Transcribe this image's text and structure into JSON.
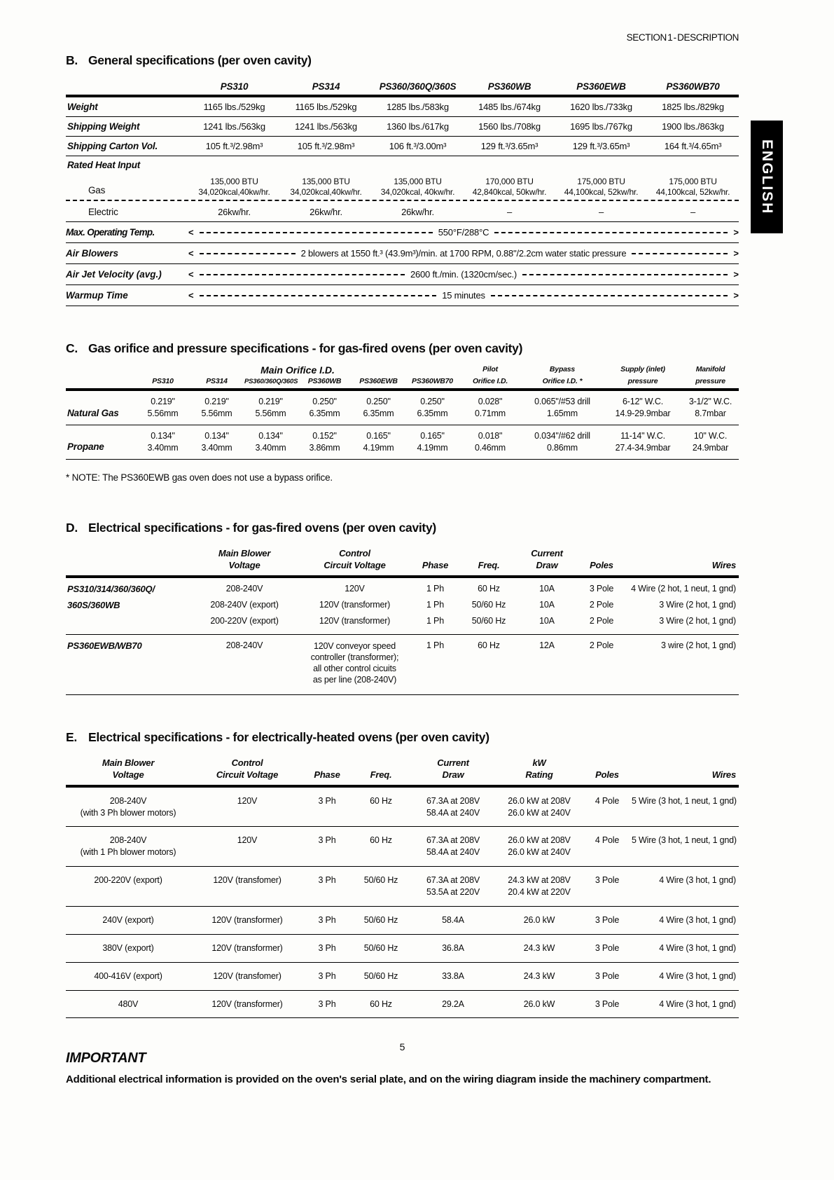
{
  "page": {
    "header": "SECTION 1 - DESCRIPTION",
    "language_tab": "ENGLISH",
    "page_number": "5"
  },
  "section_b": {
    "letter": "B.",
    "title": "General specifications (per oven cavity)",
    "columns": [
      "PS310",
      "PS314",
      "PS360/360Q/360S",
      "PS360WB",
      "PS360EWB",
      "PS360WB70"
    ],
    "rows": [
      {
        "label": "Weight",
        "values": [
          "1165 lbs./529kg",
          "1165 lbs./529kg",
          "1285 lbs./583kg",
          "1485 lbs./674kg",
          "1620 lbs./733kg",
          "1825 lbs./829kg"
        ]
      },
      {
        "label": "Shipping Weight",
        "values": [
          "1241 lbs./563kg",
          "1241 lbs./563kg",
          "1360 lbs./617kg",
          "1560 lbs./708kg",
          "1695 lbs./767kg",
          "1900 lbs./863kg"
        ]
      },
      {
        "label": "Shipping Carton Vol.",
        "values": [
          "105 ft.³/2.98m³",
          "105 ft.³/2.98m³",
          "106 ft.³/3.00m³",
          "129 ft.³/3.65m³",
          "129 ft.³/3.65m³",
          "164 ft.³/4.65m³"
        ]
      }
    ],
    "heat_input": {
      "group_label": "Rated Heat Input",
      "gas_label": "Gas",
      "gas_values": [
        [
          "135,000 BTU",
          "34,020kcal,40kw/hr."
        ],
        [
          "135,000 BTU",
          "34,020kcal,40kw/hr."
        ],
        [
          "135,000 BTU",
          "34,020kcal, 40kw/hr."
        ],
        [
          "170,000 BTU",
          "42,840kcal, 50kw/hr."
        ],
        [
          "175,000 BTU",
          "44,100kcal, 52kw/hr."
        ],
        [
          "175,000 BTU",
          "44,100kcal, 52kw/hr."
        ]
      ],
      "electric_label": "Electric",
      "electric_values": [
        "26kw/hr.",
        "26kw/hr.",
        "26kw/hr.",
        "–",
        "–",
        "–"
      ]
    },
    "span_rows": [
      {
        "label": "Max. Operating Temp.",
        "value": "550°F/288°C"
      },
      {
        "label": "Air Blowers",
        "value": "2 blowers at 1550 ft.³ (43.9m³)/min. at 1700 RPM, 0.88\"/2.2cm water static pressure"
      },
      {
        "label": "Air Jet Velocity (avg.)",
        "value": "2600 ft./min. (1320cm/sec.)"
      },
      {
        "label": "Warmup Time",
        "value": "15 minutes"
      }
    ]
  },
  "section_c": {
    "letter": "C.",
    "title": "Gas orifice and pressure specifications - for gas-fired ovens (per oven cavity)",
    "main_orifice_header": "Main Orifice I.D.",
    "columns": [
      "PS310",
      "PS314",
      "PS360/360Q/360S",
      "PS360WB",
      "PS360EWB",
      "PS360WB70"
    ],
    "extra_columns": [
      [
        "Pilot",
        "Orifice I.D."
      ],
      [
        "Bypass",
        "Orifice I.D. *"
      ],
      [
        "Supply (inlet)",
        "pressure"
      ],
      [
        "Manifold",
        "pressure"
      ]
    ],
    "rows": [
      {
        "label": "Natural Gas",
        "values": [
          [
            "0.219\"",
            "5.56mm"
          ],
          [
            "0.219\"",
            "5.56mm"
          ],
          [
            "0.219\"",
            "5.56mm"
          ],
          [
            "0.250\"",
            "6.35mm"
          ],
          [
            "0.250\"",
            "6.35mm"
          ],
          [
            "0.250\"",
            "6.35mm"
          ],
          [
            "0.028\"",
            "0.71mm"
          ],
          [
            "0.065\"/#53 drill",
            "1.65mm"
          ],
          [
            "6-12\" W.C.",
            "14.9-29.9mbar"
          ],
          [
            "3-1/2\" W.C.",
            "8.7mbar"
          ]
        ]
      },
      {
        "label": "Propane",
        "values": [
          [
            "0.134\"",
            "3.40mm"
          ],
          [
            "0.134\"",
            "3.40mm"
          ],
          [
            "0.134\"",
            "3.40mm"
          ],
          [
            "0.152\"",
            "3.86mm"
          ],
          [
            "0.165\"",
            "4.19mm"
          ],
          [
            "0.165\"",
            "4.19mm"
          ],
          [
            "0.018\"",
            "0.46mm"
          ],
          [
            "0.034\"/#62 drill",
            "0.86mm"
          ],
          [
            "11-14\" W.C.",
            "27.4-34.9mbar"
          ],
          [
            "10\" W.C.",
            "24.9mbar"
          ]
        ]
      }
    ],
    "note": "*  NOTE:  The PS360EWB gas oven does not use a bypass orifice."
  },
  "section_d": {
    "letter": "D.",
    "title": "Electrical specifications - for gas-fired ovens (per oven cavity)",
    "columns": [
      [
        "Main Blower",
        "Voltage"
      ],
      [
        "Control",
        "Circuit Voltage"
      ],
      [
        "Phase"
      ],
      [
        "Freq."
      ],
      [
        "Current",
        "Draw"
      ],
      [
        "Poles"
      ],
      [
        "Wires"
      ]
    ],
    "groups": [
      {
        "rows": [
          {
            "label": "PS310/314/360/360Q/",
            "cells": [
              "208-240V",
              "120V",
              "1 Ph",
              "60 Hz",
              "10A",
              "3 Pole",
              "4 Wire (2 hot, 1 neut, 1 gnd)"
            ]
          },
          {
            "label": "360S/360WB",
            "cells": [
              "208-240V (export)",
              "120V (transformer)",
              "1 Ph",
              "50/60 Hz",
              "10A",
              "2 Pole",
              "3 Wire (2 hot, 1 gnd)"
            ]
          },
          {
            "label": "",
            "cells": [
              "200-220V (export)",
              "120V (transformer)",
              "1 Ph",
              "50/60 Hz",
              "10A",
              "2 Pole",
              "3 Wire (2 hot, 1 gnd)"
            ]
          }
        ]
      },
      {
        "rows": [
          {
            "label": "PS360EWB/WB70",
            "cells": [
              "208-240V",
              [
                "120V conveyor speed",
                "controller (transformer);",
                "all other control cicuits",
                "as per line (208-240V)"
              ],
              "1 Ph",
              "60 Hz",
              "12A",
              "2 Pole",
              "3 wire (2 hot, 1 gnd)"
            ]
          }
        ]
      }
    ]
  },
  "section_e": {
    "letter": "E.",
    "title": "Electrical specifications - for electrically-heated ovens (per oven cavity)",
    "columns": [
      [
        "Main Blower",
        "Voltage"
      ],
      [
        "Control",
        "Circuit Voltage"
      ],
      [
        "Phase"
      ],
      [
        "Freq."
      ],
      [
        "Current",
        "Draw"
      ],
      [
        "kW",
        "Rating"
      ],
      [
        "Poles"
      ],
      [
        "Wires"
      ]
    ],
    "rows": [
      {
        "label": [
          "208-240V",
          "(with 3 Ph blower motors)"
        ],
        "cells": [
          "120V",
          "3 Ph",
          "60 Hz",
          [
            "67.3A at 208V",
            "58.4A at 240V"
          ],
          [
            "26.0 kW at 208V",
            "26.0 kW at 240V"
          ],
          "4 Pole",
          "5 Wire (3 hot, 1 neut, 1 gnd)"
        ]
      },
      {
        "label": [
          "208-240V",
          "(with 1 Ph blower motors)"
        ],
        "cells": [
          "120V",
          "3 Ph",
          "60 Hz",
          [
            "67.3A at 208V",
            "58.4A at 240V"
          ],
          [
            "26.0 kW at 208V",
            "26.0 kW at 240V"
          ],
          "4 Pole",
          "5 Wire (3 hot, 1 neut, 1 gnd)"
        ]
      },
      {
        "label": [
          "200-220V (export)"
        ],
        "cells": [
          "120V (transfomer)",
          "3 Ph",
          "50/60 Hz",
          [
            "67.3A at 208V",
            "53.5A at 220V"
          ],
          [
            "24.3 kW at 208V",
            "20.4 kW at 220V"
          ],
          "3 Pole",
          "4 Wire (3 hot, 1 gnd)"
        ]
      },
      {
        "label": [
          "240V (export)"
        ],
        "cells": [
          "120V (transformer)",
          "3 Ph",
          "50/60 Hz",
          "58.4A",
          "26.0 kW",
          "3 Pole",
          "4 Wire (3 hot, 1 gnd)"
        ]
      },
      {
        "label": [
          "380V (export)"
        ],
        "cells": [
          "120V (transformer)",
          "3 Ph",
          "50/60 Hz",
          "36.8A",
          "24.3 kW",
          "3 Pole",
          "4 Wire (3 hot, 1 gnd)"
        ]
      },
      {
        "label": [
          "400-416V (export)"
        ],
        "cells": [
          "120V (transfomer)",
          "3 Ph",
          "50/60 Hz",
          "33.8A",
          "24.3 kW",
          "3 Pole",
          "4 Wire (3 hot, 1 gnd)"
        ]
      },
      {
        "label": [
          "480V"
        ],
        "cells": [
          "120V (transformer)",
          "3 Ph",
          "60 Hz",
          "29.2A",
          "26.0 kW",
          "3 Pole",
          "4 Wire (3 hot, 1 gnd)"
        ]
      }
    ]
  },
  "important": {
    "title": "IMPORTANT",
    "body": "Additional electrical information is provided on the oven's serial plate, and on the wiring diagram inside the machinery compartment."
  }
}
